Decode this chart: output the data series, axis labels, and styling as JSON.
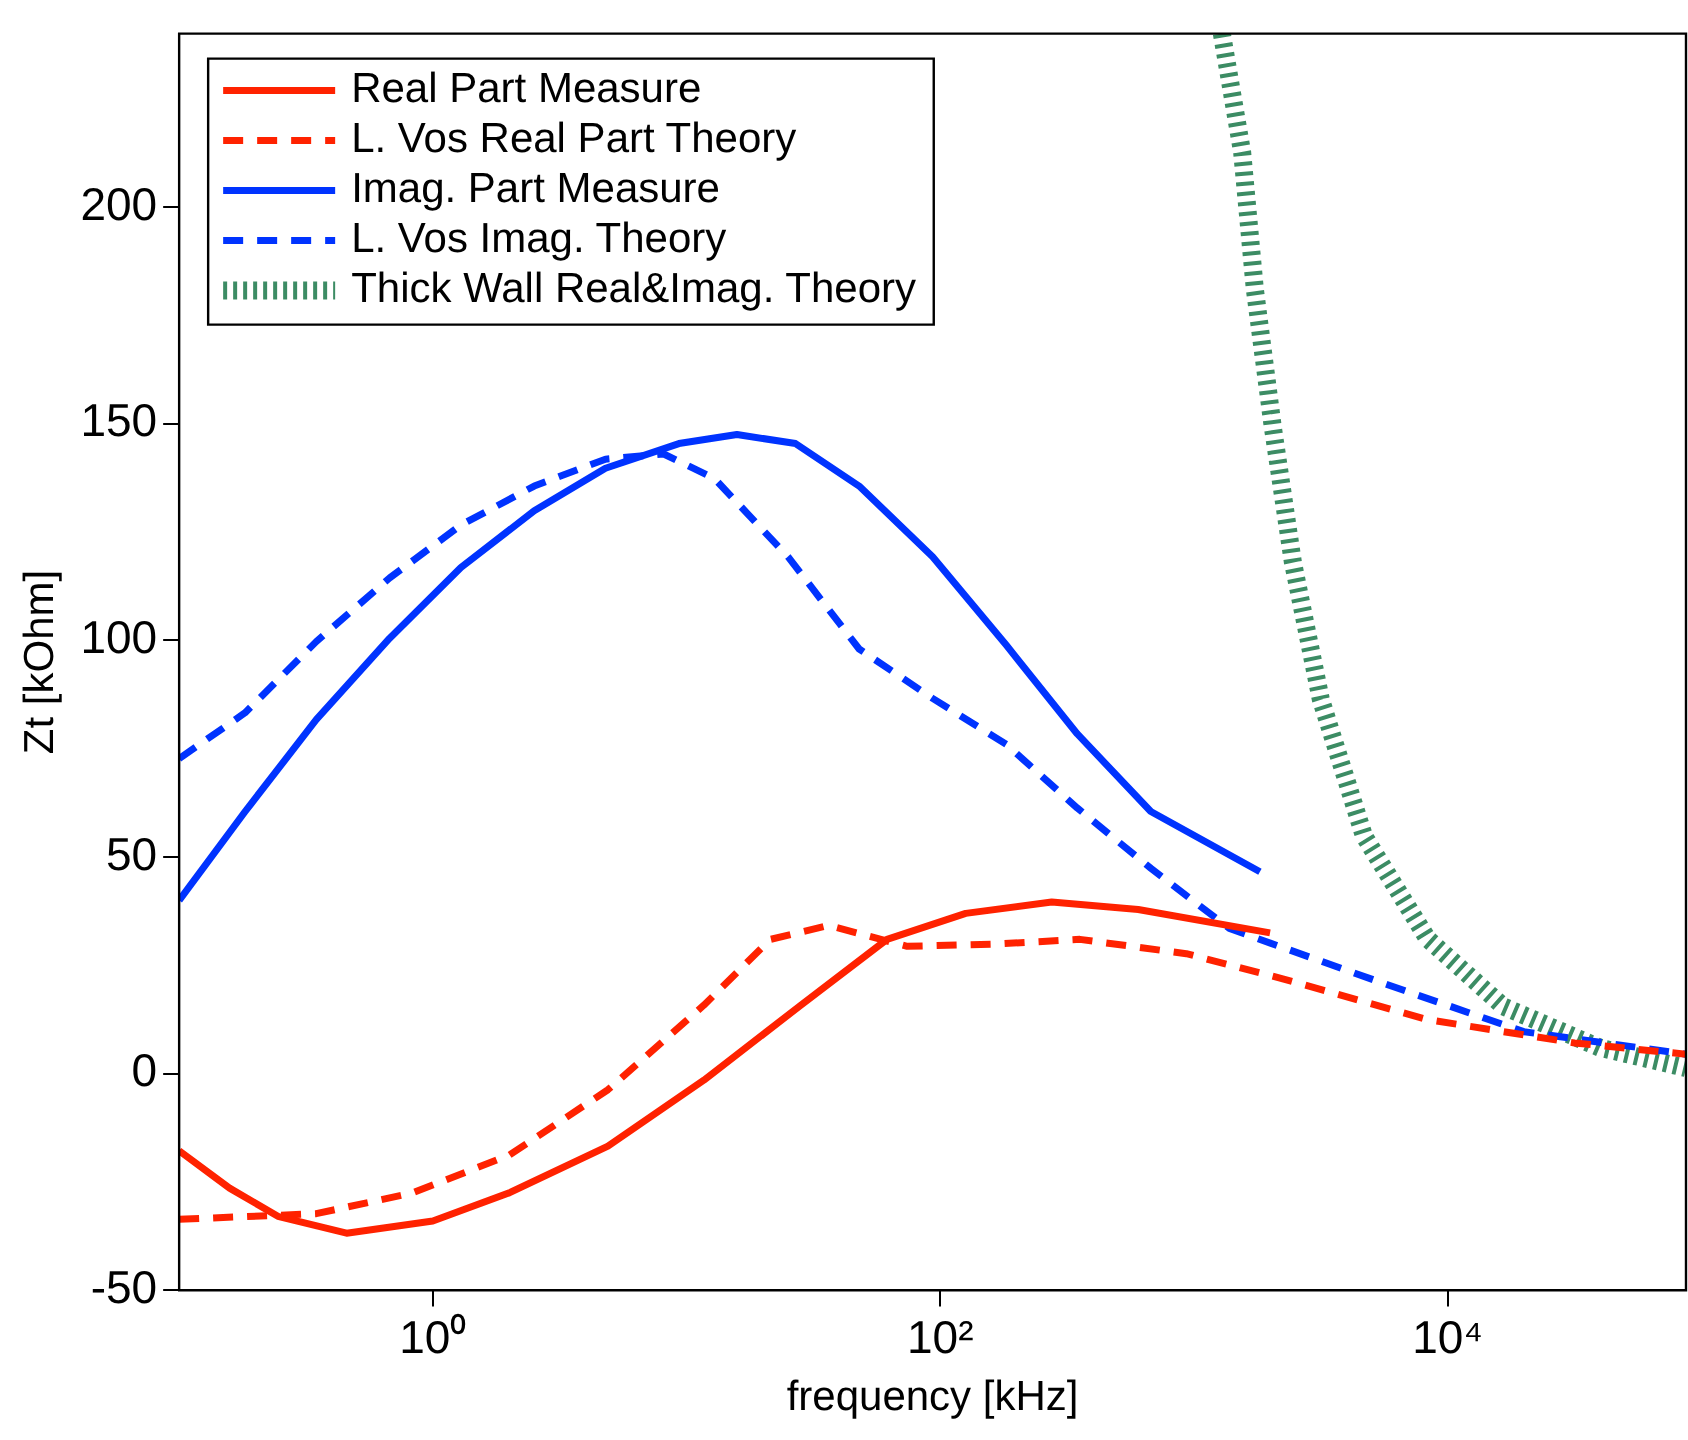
{
  "chart_data": {
    "type": "line",
    "xlabel": "frequency [kHz]",
    "ylabel": "Zt [kOhm]",
    "log": "x",
    "marker": "none",
    "legend": "top left",
    "grid": false,
    "xlim": [
      0.1,
      87000
    ],
    "xticks": [
      {
        "value": 1,
        "label": "10⁰"
      },
      {
        "value": 100,
        "label": "10²"
      },
      {
        "value": 10000,
        "label": "10⁴"
      }
    ],
    "ylim": [
      -50,
      240
    ],
    "yticks": [
      -50,
      0,
      50,
      100,
      150,
      200
    ],
    "series": [
      {
        "name": "Real Part Measure",
        "color": "#ff2200",
        "line_style": "solid",
        "x": [
          0.1,
          0.158,
          0.245,
          0.457,
          1,
          2,
          4.9,
          11.7,
          28.2,
          61.7,
          126,
          275,
          603,
          1995
        ],
        "values": [
          -17.8,
          -26.4,
          -32.9,
          -36.8,
          -34,
          -27.5,
          -16.7,
          -1.5,
          15.8,
          31,
          37,
          39.6,
          37.9,
          32.5
        ]
      },
      {
        "name": "L. Vos Real Part Theory",
        "color": "#ff2200",
        "line_style": "dashed",
        "x": [
          0.1,
          0.347,
          0.832,
          2,
          4.9,
          11.7,
          21.4,
          36.3,
          74.1,
          162,
          355,
          933,
          2239,
          8318,
          31623,
          87000
        ],
        "values": [
          -33.6,
          -32.3,
          -27.5,
          -18.8,
          -3.7,
          15.8,
          31,
          34.2,
          29.4,
          29.9,
          31,
          27.7,
          21.9,
          12.5,
          7.1,
          4.5
        ]
      },
      {
        "name": "Imag. Part Measure",
        "color": "#0033ff",
        "line_style": "solid",
        "x": [
          0.1,
          0.182,
          0.347,
          0.676,
          1.29,
          2.51,
          4.79,
          9.33,
          15.8,
          26.9,
          47.9,
          93.3,
          182,
          347,
          676,
          1820
        ],
        "values": [
          40,
          60.5,
          81.7,
          100.5,
          116.8,
          129.9,
          139.7,
          145.4,
          147.5,
          145.4,
          135.6,
          119.3,
          98.9,
          78.4,
          60.5,
          46.6
        ]
      },
      {
        "name": "L. Vos Imag. Theory",
        "color": "#0033ff",
        "line_style": "dashed",
        "x": [
          0.1,
          0.182,
          0.347,
          0.676,
          1.29,
          2.51,
          4.79,
          8.13,
          12.9,
          25.1,
          47.9,
          93.3,
          182,
          347,
          676,
          1380,
          5370,
          19953,
          87000
        ],
        "values": [
          72.7,
          83.3,
          99.7,
          114.4,
          126.6,
          135.6,
          141.8,
          143,
          137.3,
          119.3,
          98,
          86.6,
          76,
          61.3,
          47.4,
          33.5,
          21.2,
          9.7,
          4.5
        ]
      },
      {
        "name": "Thick Wall Real&Imag. Theory",
        "color": "#3c8c64",
        "line_style": "dotted",
        "x": [
          1288,
          1549,
          1738,
          2042,
          2455,
          3162,
          4677,
          8318,
          16596,
          39811,
          87000
        ],
        "values": [
          240,
          212.6,
          181,
          149.5,
          118,
          86.4,
          54.9,
          31.2,
          15.5,
          6,
          1.3
        ]
      }
    ]
  }
}
